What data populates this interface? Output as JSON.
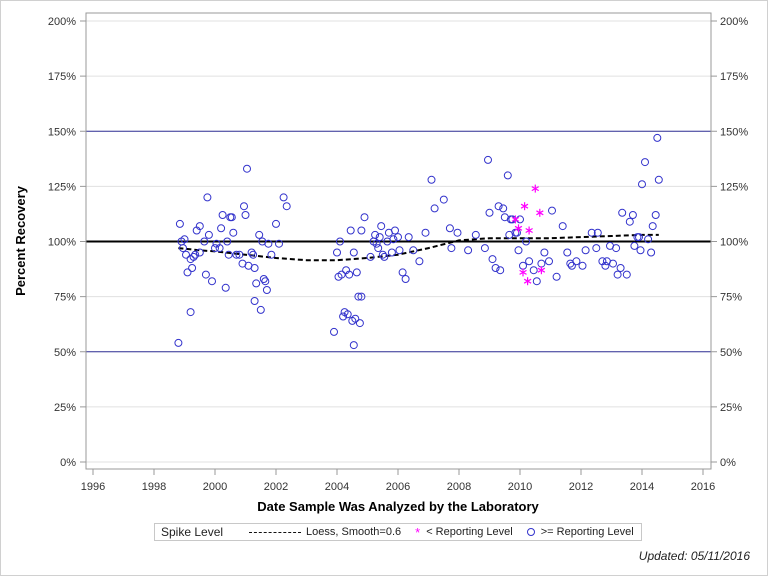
{
  "chart_data": {
    "type": "scatter",
    "xlabel": "Date Sample Was Analyzed by the Laboratory",
    "ylabel": "Percent Recovery",
    "xlim": [
      1995.75,
      2016.5
    ],
    "ylim": [
      -2,
      202
    ],
    "x_ticks": [
      1996,
      1998,
      2000,
      2002,
      2004,
      2006,
      2008,
      2010,
      2012,
      2014,
      2016
    ],
    "x_tick_labels": [
      "1996",
      "1998",
      "2000",
      "2002",
      "2004",
      "2006",
      "2008",
      "2010",
      "2012",
      "2014",
      "2016"
    ],
    "y_ticks": [
      0,
      25,
      50,
      75,
      100,
      125,
      150,
      175,
      200
    ],
    "y_tick_labels": [
      "0%",
      "25%",
      "50%",
      "75%",
      "100%",
      "125%",
      "150%",
      "175%",
      "200%"
    ],
    "grid": true,
    "reference_lines": {
      "spike_level": 100,
      "control_limits": [
        50,
        150
      ]
    },
    "colors": {
      "circle": "#3333cc",
      "star": "#ff00ff",
      "control": "#333399",
      "spike": "#000000",
      "loess": "#000000",
      "grid": "#e0e0e0",
      "frame": "#999999"
    },
    "series": [
      {
        "name": ">= Reporting Level",
        "marker": "circle",
        "points": [
          [
            1998.8,
            54
          ],
          [
            1998.85,
            108
          ],
          [
            1998.9,
            100
          ],
          [
            1998.95,
            97
          ],
          [
            1999.0,
            101
          ],
          [
            1999.05,
            94
          ],
          [
            1999.1,
            86
          ],
          [
            1999.2,
            68
          ],
          [
            1999.2,
            92
          ],
          [
            1999.25,
            88
          ],
          [
            1999.3,
            93
          ],
          [
            1999.35,
            94
          ],
          [
            1999.4,
            105
          ],
          [
            1999.5,
            107
          ],
          [
            1999.5,
            95
          ],
          [
            1999.65,
            100
          ],
          [
            1999.7,
            85
          ],
          [
            1999.75,
            120
          ],
          [
            1999.8,
            103
          ],
          [
            1999.9,
            82
          ],
          [
            2000.0,
            97
          ],
          [
            2000.05,
            99
          ],
          [
            2000.15,
            97
          ],
          [
            2000.2,
            106
          ],
          [
            2000.25,
            112
          ],
          [
            2000.35,
            79
          ],
          [
            2000.4,
            100
          ],
          [
            2000.45,
            94
          ],
          [
            2000.5,
            111
          ],
          [
            2000.55,
            111
          ],
          [
            2000.6,
            104
          ],
          [
            2000.7,
            94
          ],
          [
            2000.8,
            94
          ],
          [
            2000.9,
            90
          ],
          [
            2000.95,
            116
          ],
          [
            2001.0,
            112
          ],
          [
            2001.05,
            133
          ],
          [
            2001.1,
            89
          ],
          [
            2001.2,
            95
          ],
          [
            2001.25,
            94
          ],
          [
            2001.3,
            88
          ],
          [
            2001.3,
            73
          ],
          [
            2001.35,
            81
          ],
          [
            2001.45,
            103
          ],
          [
            2001.5,
            69
          ],
          [
            2001.55,
            100
          ],
          [
            2001.6,
            83
          ],
          [
            2001.65,
            82
          ],
          [
            2001.7,
            78
          ],
          [
            2001.75,
            99
          ],
          [
            2001.85,
            94
          ],
          [
            2002.0,
            108
          ],
          [
            2002.1,
            99
          ],
          [
            2002.25,
            120
          ],
          [
            2002.35,
            116
          ],
          [
            2003.9,
            59
          ],
          [
            2004.0,
            95
          ],
          [
            2004.05,
            84
          ],
          [
            2004.1,
            100
          ],
          [
            2004.15,
            85
          ],
          [
            2004.2,
            66
          ],
          [
            2004.25,
            68
          ],
          [
            2004.3,
            87
          ],
          [
            2004.35,
            67
          ],
          [
            2004.4,
            85
          ],
          [
            2004.45,
            105
          ],
          [
            2004.5,
            64
          ],
          [
            2004.55,
            95
          ],
          [
            2004.55,
            53
          ],
          [
            2004.6,
            65
          ],
          [
            2004.65,
            86
          ],
          [
            2004.7,
            75
          ],
          [
            2004.75,
            63
          ],
          [
            2004.8,
            75
          ],
          [
            2004.8,
            105
          ],
          [
            2004.9,
            111
          ],
          [
            2005.1,
            93
          ],
          [
            2005.2,
            100
          ],
          [
            2005.25,
            103
          ],
          [
            2005.3,
            99
          ],
          [
            2005.35,
            97
          ],
          [
            2005.4,
            102
          ],
          [
            2005.45,
            107
          ],
          [
            2005.5,
            94
          ],
          [
            2005.55,
            93
          ],
          [
            2005.65,
            100
          ],
          [
            2005.7,
            104
          ],
          [
            2005.8,
            95
          ],
          [
            2005.85,
            101
          ],
          [
            2005.9,
            105
          ],
          [
            2006.0,
            102
          ],
          [
            2006.05,
            96
          ],
          [
            2006.15,
            86
          ],
          [
            2006.25,
            83
          ],
          [
            2006.35,
            102
          ],
          [
            2006.5,
            96
          ],
          [
            2006.7,
            91
          ],
          [
            2006.9,
            104
          ],
          [
            2007.1,
            128
          ],
          [
            2007.2,
            115
          ],
          [
            2007.5,
            119
          ],
          [
            2007.7,
            106
          ],
          [
            2007.75,
            97
          ],
          [
            2007.95,
            104
          ],
          [
            2008.3,
            96
          ],
          [
            2008.55,
            103
          ],
          [
            2008.85,
            97
          ],
          [
            2008.95,
            137
          ],
          [
            2009.0,
            113
          ],
          [
            2009.1,
            92
          ],
          [
            2009.2,
            88
          ],
          [
            2009.3,
            116
          ],
          [
            2009.35,
            87
          ],
          [
            2009.45,
            115
          ],
          [
            2009.5,
            111
          ],
          [
            2009.6,
            130
          ],
          [
            2009.65,
            103
          ],
          [
            2009.7,
            110
          ],
          [
            2009.75,
            110
          ],
          [
            2009.85,
            104
          ],
          [
            2009.9,
            104
          ],
          [
            2009.95,
            96
          ],
          [
            2010.0,
            110
          ],
          [
            2010.1,
            89
          ],
          [
            2010.2,
            100
          ],
          [
            2010.3,
            91
          ],
          [
            2010.45,
            87
          ],
          [
            2010.55,
            82
          ],
          [
            2010.7,
            90
          ],
          [
            2010.8,
            95
          ],
          [
            2010.95,
            91
          ],
          [
            2011.05,
            114
          ],
          [
            2011.2,
            84
          ],
          [
            2011.4,
            107
          ],
          [
            2011.55,
            95
          ],
          [
            2011.65,
            90
          ],
          [
            2011.7,
            89
          ],
          [
            2011.85,
            91
          ],
          [
            2012.05,
            89
          ],
          [
            2012.15,
            96
          ],
          [
            2012.35,
            104
          ],
          [
            2012.5,
            97
          ],
          [
            2012.55,
            104
          ],
          [
            2012.7,
            91
          ],
          [
            2012.8,
            89
          ],
          [
            2012.85,
            91
          ],
          [
            2012.95,
            98
          ],
          [
            2013.05,
            90
          ],
          [
            2013.15,
            97
          ],
          [
            2013.2,
            85
          ],
          [
            2013.3,
            88
          ],
          [
            2013.35,
            113
          ],
          [
            2013.5,
            85
          ],
          [
            2013.6,
            109
          ],
          [
            2013.7,
            112
          ],
          [
            2013.75,
            98
          ],
          [
            2013.85,
            102
          ],
          [
            2013.9,
            102
          ],
          [
            2013.95,
            96
          ],
          [
            2014.0,
            126
          ],
          [
            2014.1,
            136
          ],
          [
            2014.2,
            101
          ],
          [
            2014.3,
            95
          ],
          [
            2014.35,
            107
          ],
          [
            2014.45,
            112
          ],
          [
            2014.5,
            147
          ],
          [
            2014.55,
            128
          ]
        ]
      },
      {
        "name": "< Reporting Level",
        "marker": "star",
        "points": [
          [
            2009.85,
            110
          ],
          [
            2009.95,
            106
          ],
          [
            2010.1,
            86
          ],
          [
            2010.15,
            116
          ],
          [
            2010.25,
            82
          ],
          [
            2010.3,
            105
          ],
          [
            2010.5,
            124
          ],
          [
            2010.65,
            113
          ],
          [
            2010.7,
            87
          ]
        ]
      },
      {
        "name": "Loess, Smooth=0.6",
        "marker": "dash",
        "points": [
          [
            1998.8,
            97
          ],
          [
            1999.5,
            96
          ],
          [
            2000.0,
            95.5
          ],
          [
            2001.0,
            94
          ],
          [
            2002.0,
            92.5
          ],
          [
            2003.0,
            91.5
          ],
          [
            2004.0,
            91.5
          ],
          [
            2005.0,
            92.5
          ],
          [
            2006.0,
            94
          ],
          [
            2007.0,
            97
          ],
          [
            2008.0,
            100.5
          ],
          [
            2009.0,
            101.5
          ],
          [
            2010.0,
            101.5
          ],
          [
            2011.0,
            101.5
          ],
          [
            2012.0,
            102
          ],
          [
            2013.0,
            102.5
          ],
          [
            2014.0,
            103
          ],
          [
            2014.55,
            103
          ]
        ]
      }
    ]
  },
  "legend": {
    "title": "Spike Level",
    "loess_label": "Loess, Smooth=0.6",
    "star_label": "< Reporting Level",
    "circle_label": ">= Reporting Level"
  },
  "footer": {
    "updated": "Updated: 05/11/2016"
  }
}
